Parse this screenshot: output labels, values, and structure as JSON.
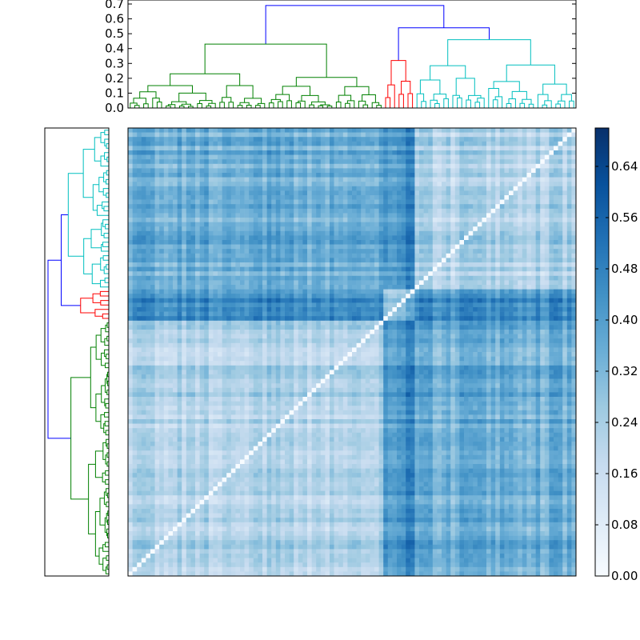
{
  "chart_data": [
    {
      "type": "dendrogram",
      "orientation": "top",
      "ylim": [
        0,
        0.7
      ],
      "yticks": [
        "0.0",
        "0.1",
        "0.2",
        "0.3",
        "0.4",
        "0.5",
        "0.6",
        "0.7"
      ],
      "leaf_count": 100,
      "root_height": 0.69,
      "clusters": [
        {
          "color": "#008000",
          "leaves": 57,
          "merge_height": 0.43
        },
        {
          "color": "#ff0000",
          "leaves": 7,
          "merge_height": 0.32
        },
        {
          "color": "#00bfbf",
          "leaves": 36,
          "merge_height": 0.46
        }
      ],
      "link_color": "#0000ff",
      "inter_cluster_merge_height": 0.54
    },
    {
      "type": "dendrogram",
      "orientation": "left",
      "leaf_count": 100,
      "clusters": [
        {
          "color": "#00bfbf",
          "leaves": 36
        },
        {
          "color": "#ff0000",
          "leaves": 7
        },
        {
          "color": "#008000",
          "leaves": 57
        }
      ],
      "link_color": "#0000ff"
    },
    {
      "type": "heatmap",
      "size": [
        100,
        100
      ],
      "colormap": "Blues",
      "vmin": 0.0,
      "vmax": 0.7,
      "diagonal": 0.0,
      "colorbar_ticks": [
        "0.00",
        "0.08",
        "0.16",
        "0.24",
        "0.32",
        "0.40",
        "0.48",
        "0.56",
        "0.64"
      ],
      "colorbar_tick_values": [
        0.0,
        0.08,
        0.16,
        0.24,
        0.32,
        0.4,
        0.48,
        0.56,
        0.64
      ]
    }
  ]
}
